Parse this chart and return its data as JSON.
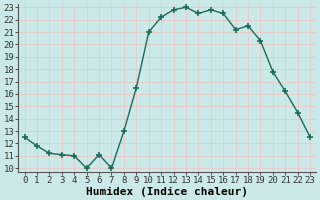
{
  "x": [
    0,
    1,
    2,
    3,
    4,
    5,
    6,
    7,
    8,
    9,
    10,
    11,
    12,
    13,
    14,
    15,
    16,
    17,
    18,
    19,
    20,
    21,
    22,
    23
  ],
  "y": [
    12.5,
    11.8,
    11.2,
    11.1,
    11.0,
    10.0,
    11.1,
    10.0,
    13.0,
    16.5,
    21.0,
    22.2,
    22.8,
    23.0,
    22.5,
    22.8,
    22.5,
    21.2,
    21.5,
    20.3,
    17.8,
    16.2,
    14.5,
    12.5
  ],
  "xlabel": "Humidex (Indice chaleur)",
  "ylim": [
    10,
    23
  ],
  "xlim": [
    0,
    23
  ],
  "yticks": [
    10,
    11,
    12,
    13,
    14,
    15,
    16,
    17,
    18,
    19,
    20,
    21,
    22,
    23
  ],
  "xticks": [
    0,
    1,
    2,
    3,
    4,
    5,
    6,
    7,
    8,
    9,
    10,
    11,
    12,
    13,
    14,
    15,
    16,
    17,
    18,
    19,
    20,
    21,
    22,
    23
  ],
  "line_color": "#1a6b5a",
  "marker_color": "#1a6b5a",
  "bg_color": "#cce9e9",
  "grid_color": "#e8c8c8",
  "xlabel_fontsize": 8,
  "tick_fontsize": 6.5
}
